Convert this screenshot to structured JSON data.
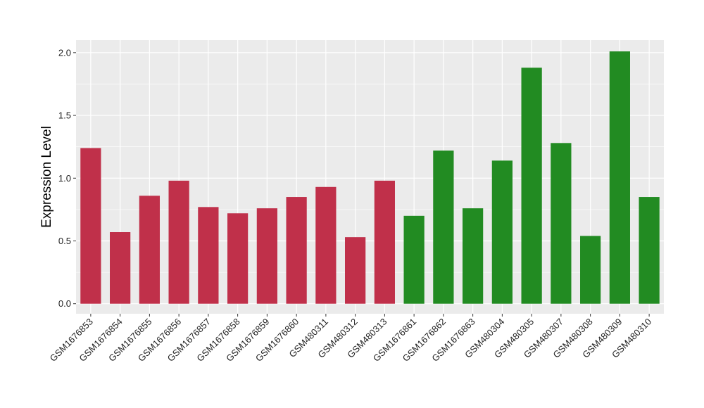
{
  "chart_data": {
    "type": "bar",
    "ylabel": "Expression Level",
    "xlabel": "",
    "title": "",
    "ylim": [
      -0.08,
      2.1
    ],
    "yticks": [
      0.0,
      0.5,
      1.0,
      1.5,
      2.0
    ],
    "ytick_labels": [
      "0.0",
      "0.5",
      "1.0",
      "1.5",
      "2.0"
    ],
    "grid": true,
    "panel_background": "#ebebeb",
    "grid_color": "#ffffff",
    "categories": [
      "GSM1676853",
      "GSM1676854",
      "GSM1676855",
      "GSM1676856",
      "GSM1676857",
      "GSM1676858",
      "GSM1676859",
      "GSM1676860",
      "GSM480311",
      "GSM480312",
      "GSM480313",
      "GSM1676861",
      "GSM1676862",
      "GSM1676863",
      "GSM480304",
      "GSM480305",
      "GSM480307",
      "GSM480308",
      "GSM480309",
      "GSM480310"
    ],
    "values": [
      1.24,
      0.57,
      0.86,
      0.98,
      0.77,
      0.72,
      0.76,
      0.85,
      0.93,
      0.53,
      0.98,
      0.7,
      1.22,
      0.76,
      1.14,
      1.88,
      1.28,
      0.54,
      2.01,
      0.85
    ],
    "bar_colors": [
      "#c0304a",
      "#c0304a",
      "#c0304a",
      "#c0304a",
      "#c0304a",
      "#c0304a",
      "#c0304a",
      "#c0304a",
      "#c0304a",
      "#c0304a",
      "#c0304a",
      "#228b22",
      "#228b22",
      "#228b22",
      "#228b22",
      "#228b22",
      "#228b22",
      "#228b22",
      "#228b22",
      "#228b22"
    ]
  }
}
